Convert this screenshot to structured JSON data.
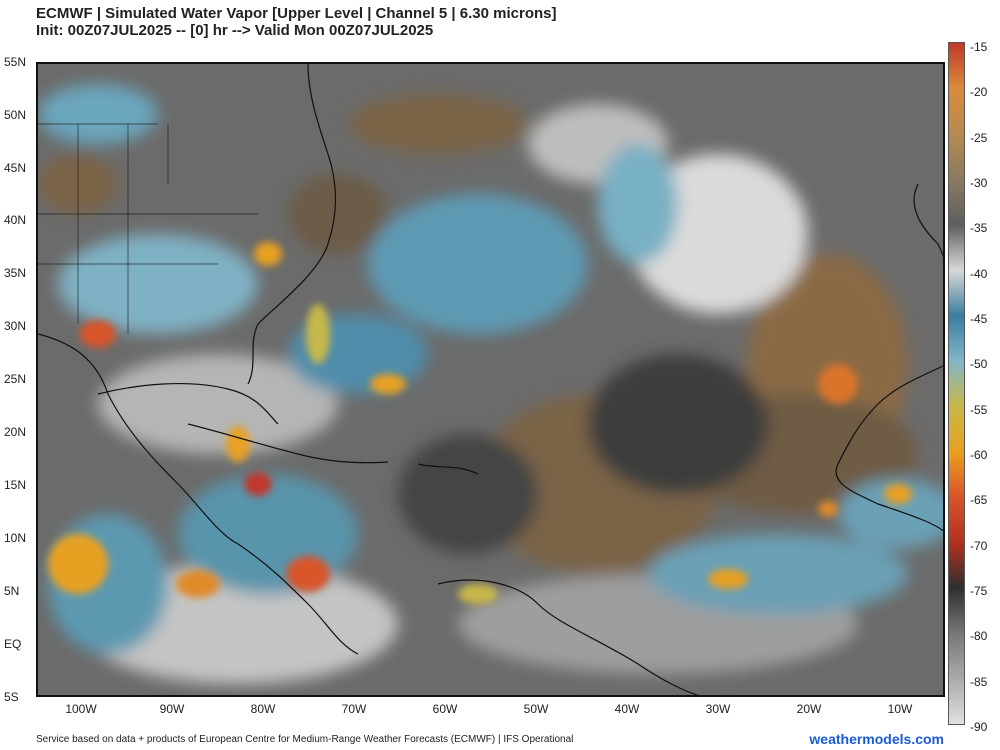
{
  "header": {
    "line1": "ECMWF | Simulated Water Vapor [Upper Level | Channel 5 | 6.30 microns]",
    "line2": "Init: 00Z07JUL2025 -- [0] hr --> Valid Mon 00Z07JUL2025"
  },
  "map": {
    "lat_labels": [
      "55N",
      "50N",
      "45N",
      "40N",
      "35N",
      "30N",
      "25N",
      "20N",
      "15N",
      "10N",
      "5N",
      "EQ",
      "5S"
    ],
    "lon_labels": [
      "100W",
      "90W",
      "80W",
      "70W",
      "60W",
      "50W",
      "40W",
      "30W",
      "20W",
      "10W"
    ]
  },
  "colorbar": {
    "labels": [
      "-15",
      "-20",
      "-25",
      "-30",
      "-35",
      "-40",
      "-45",
      "-50",
      "-55",
      "-60",
      "-65",
      "-70",
      "-75",
      "-80",
      "-85",
      "-90"
    ],
    "colors": [
      "#c0392b",
      "#d98a3a",
      "#b78a4e",
      "#8a7a62",
      "#5e5e5e",
      "#d8d8d8",
      "#3a7ea0",
      "#7fb6c8",
      "#c8b84a",
      "#e8a020",
      "#d9552a",
      "#b23020",
      "#2f2f2f",
      "#777777",
      "#aaaaaa",
      "#e0e0e0"
    ]
  },
  "footer": {
    "source": "Service based on data + products of European Centre for Medium-Range Weather Forecasts (ECMWF) | IFS Operational",
    "brand": "weathermodels.com"
  }
}
